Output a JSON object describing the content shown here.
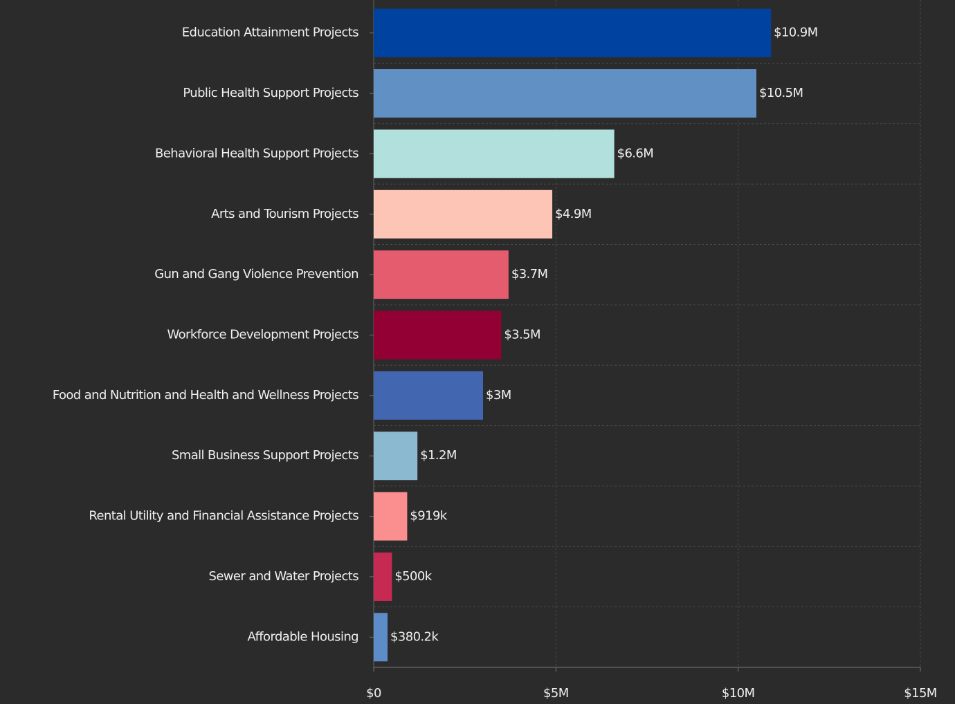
{
  "chart_data": {
    "type": "bar",
    "orientation": "horizontal",
    "categories": [
      "Education Attainment Projects",
      "Public Health Support Projects",
      "Behavioral Health Support Projects",
      "Arts and Tourism Projects",
      "Gun and Gang Violence Prevention",
      "Workforce Development Projects",
      "Food and Nutrition and Health and Wellness Projects",
      "Small Business Support Projects",
      "Rental Utility and Financial Assistance Projects",
      "Sewer and Water Projects",
      "Affordable Housing"
    ],
    "values": [
      10900000,
      10500000,
      6600000,
      4900000,
      3700000,
      3500000,
      3000000,
      1200000,
      919000,
      500000,
      380200
    ],
    "value_labels": [
      "$10.9M",
      "$10.5M",
      "$6.6M",
      "$4.9M",
      "$3.7M",
      "$3.5M",
      "$3M",
      "$1.2M",
      "$919k",
      "$500k",
      "$380.2k"
    ],
    "colors": [
      "#0042a0",
      "#6190c4",
      "#b2e0dc",
      "#fdc5b6",
      "#e45c6e",
      "#930034",
      "#4266b0",
      "#8ab9d0",
      "#fb8f8f",
      "#c62a52",
      "#5c8dc8"
    ],
    "xlim": [
      0,
      15000000
    ],
    "xticks": [
      {
        "value": 0,
        "label": "$0"
      },
      {
        "value": 5000000,
        "label": "$5M"
      },
      {
        "value": 10000000,
        "label": "$10M"
      },
      {
        "value": 15000000,
        "label": "$15M"
      }
    ],
    "grid": true
  }
}
